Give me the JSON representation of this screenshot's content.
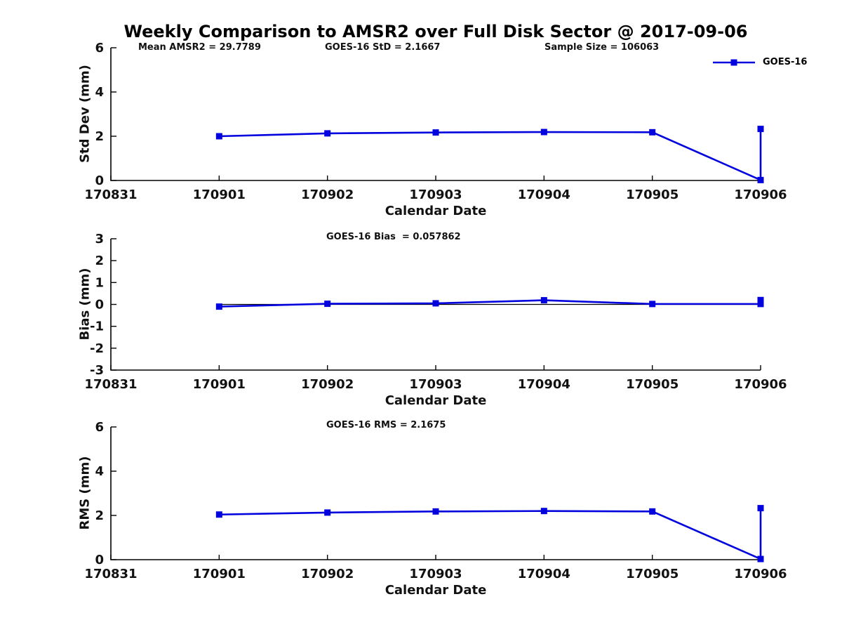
{
  "title": "Weekly Comparison to AMSR2 over Full Disk Sector @ 2017-09-06",
  "legend": {
    "label": "GOES-16",
    "color": "#0202df",
    "marker": "square"
  },
  "axis_color": "#000000",
  "chart_data": [
    {
      "type": "line",
      "ylabel": "Std Dev (mm)",
      "xlabel": "Calendar Date",
      "x_categories": [
        "170831",
        "170901",
        "170902",
        "170903",
        "170904",
        "170905",
        "170906"
      ],
      "ylim": [
        0,
        6
      ],
      "yticks": [
        0,
        2,
        4,
        6
      ],
      "grid": false,
      "legend_position": "top-right",
      "annotations": [
        {
          "text": "Mean AMSR2 = 29.7789"
        },
        {
          "text": "GOES-16 StD = 2.1667"
        },
        {
          "text": "Sample Size = 106063"
        }
      ],
      "series": [
        {
          "name": "GOES-16",
          "color": "#0202df",
          "marker": "square",
          "points": [
            [
              "170901",
              2.0
            ],
            [
              "170902",
              2.13
            ],
            [
              "170903",
              2.17
            ],
            [
              "170904",
              2.19
            ],
            [
              "170905",
              2.18
            ],
            [
              "170906",
              0.02
            ],
            [
              "170906",
              2.33
            ]
          ]
        }
      ]
    },
    {
      "type": "line",
      "ylabel": "Bias (mm)",
      "xlabel": "Calendar Date",
      "x_categories": [
        "170831",
        "170901",
        "170902",
        "170903",
        "170904",
        "170905",
        "170906"
      ],
      "ylim": [
        -3,
        3
      ],
      "yticks": [
        -3,
        -2,
        -1,
        0,
        1,
        2,
        3
      ],
      "grid": false,
      "annotations": [
        {
          "text": "GOES-16 Bias  = 0.057862"
        }
      ],
      "zero_line": {
        "color": "#000000",
        "y": 0,
        "x_from": "170901",
        "x_to": "170906"
      },
      "series": [
        {
          "name": "GOES-16",
          "color": "#0202df",
          "marker": "square",
          "points": [
            [
              "170901",
              -0.1
            ],
            [
              "170902",
              0.03
            ],
            [
              "170903",
              0.05
            ],
            [
              "170904",
              0.19
            ],
            [
              "170905",
              0.02
            ],
            [
              "170906",
              0.02
            ],
            [
              "170906",
              0.2
            ]
          ]
        }
      ]
    },
    {
      "type": "line",
      "ylabel": "RMS (mm)",
      "xlabel": "Calendar Date",
      "x_categories": [
        "170831",
        "170901",
        "170902",
        "170903",
        "170904",
        "170905",
        "170906"
      ],
      "ylim": [
        0,
        6
      ],
      "yticks": [
        0,
        2,
        4,
        6
      ],
      "grid": false,
      "annotations": [
        {
          "text": "GOES-16 RMS = 2.1675"
        }
      ],
      "series": [
        {
          "name": "GOES-16",
          "color": "#0202df",
          "marker": "square",
          "points": [
            [
              "170901",
              2.04
            ],
            [
              "170902",
              2.13
            ],
            [
              "170903",
              2.18
            ],
            [
              "170904",
              2.2
            ],
            [
              "170905",
              2.18
            ],
            [
              "170906",
              0.03
            ],
            [
              "170906",
              2.33
            ]
          ]
        }
      ]
    }
  ]
}
